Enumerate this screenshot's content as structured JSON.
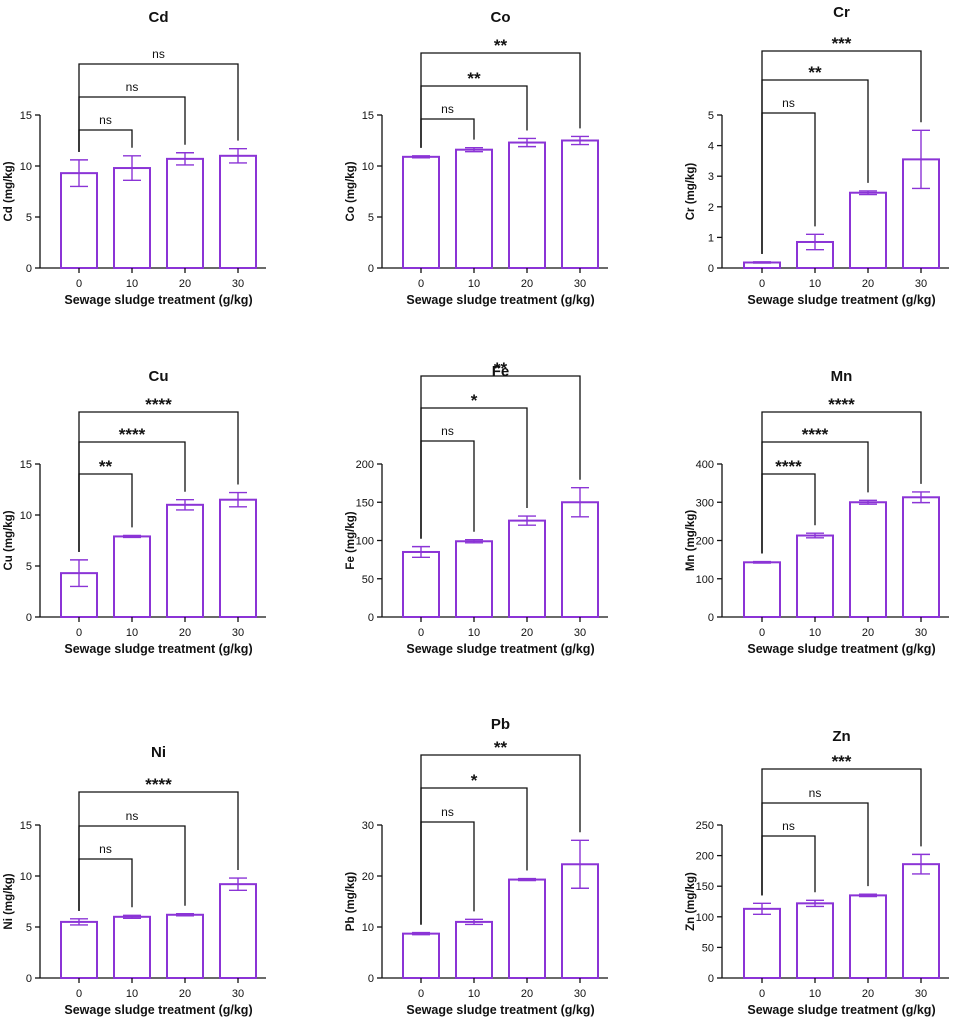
{
  "figure": {
    "accent_color": "#8b34d6",
    "axis_color": "#111111",
    "bracket_color": "#111111"
  },
  "chart_data": [
    {
      "type": "bar",
      "title": "Cd",
      "xlabel": "Sewage sludge treatment (g/kg)",
      "ylabel": "Cd (mg/kg)",
      "categories": [
        "0",
        "10",
        "20",
        "30"
      ],
      "values": [
        9.3,
        9.8,
        10.7,
        11.0
      ],
      "errors": [
        1.3,
        1.2,
        0.6,
        0.7
      ],
      "ylim": [
        0,
        15
      ],
      "yticks": [
        "0",
        "5",
        "10",
        "15"
      ],
      "significance": [
        {
          "from": "0",
          "to": "10",
          "label": "ns"
        },
        {
          "from": "0",
          "to": "20",
          "label": "ns"
        },
        {
          "from": "0",
          "to": "30",
          "label": "ns"
        }
      ]
    },
    {
      "type": "bar",
      "title": "Co",
      "xlabel": "Sewage sludge treatment (g/kg)",
      "ylabel": "Co (mg/kg)",
      "categories": [
        "0",
        "10",
        "20",
        "30"
      ],
      "values": [
        10.9,
        11.6,
        12.3,
        12.5
      ],
      "errors": [
        0.1,
        0.2,
        0.4,
        0.4
      ],
      "ylim": [
        0,
        15
      ],
      "yticks": [
        "0",
        "5",
        "10",
        "15"
      ],
      "significance": [
        {
          "from": "0",
          "to": "10",
          "label": "ns"
        },
        {
          "from": "0",
          "to": "20",
          "label": "**"
        },
        {
          "from": "0",
          "to": "30",
          "label": "**"
        }
      ]
    },
    {
      "type": "bar",
      "title": "Cr",
      "xlabel": "Sewage sludge treatment (g/kg)",
      "ylabel": "Cr (mg/kg)",
      "categories": [
        "0",
        "10",
        "20",
        "30"
      ],
      "values": [
        0.18,
        0.85,
        2.46,
        3.55
      ],
      "errors": [
        0.02,
        0.25,
        0.06,
        0.95
      ],
      "ylim": [
        0,
        5
      ],
      "yticks": [
        "0",
        "1",
        "2",
        "3",
        "4",
        "5"
      ],
      "significance": [
        {
          "from": "0",
          "to": "10",
          "label": "ns"
        },
        {
          "from": "0",
          "to": "20",
          "label": "**"
        },
        {
          "from": "0",
          "to": "30",
          "label": "***"
        }
      ]
    },
    {
      "type": "bar",
      "title": "Cu",
      "xlabel": "Sewage sludge treatment (g/kg)",
      "ylabel": "Cu (mg/kg)",
      "categories": [
        "0",
        "10",
        "20",
        "30"
      ],
      "values": [
        4.3,
        7.9,
        11.0,
        11.5
      ],
      "errors": [
        1.3,
        0.1,
        0.5,
        0.7
      ],
      "ylim": [
        0,
        15
      ],
      "yticks": [
        "0",
        "5",
        "10",
        "15"
      ],
      "significance": [
        {
          "from": "0",
          "to": "10",
          "label": "**"
        },
        {
          "from": "0",
          "to": "20",
          "label": "****"
        },
        {
          "from": "0",
          "to": "30",
          "label": "****"
        }
      ]
    },
    {
      "type": "bar",
      "title": "Fe",
      "xlabel": "Sewage sludge treatment (g/kg)",
      "ylabel": "Fe (mg/kg)",
      "categories": [
        "0",
        "10",
        "20",
        "30"
      ],
      "values": [
        85,
        99,
        126,
        150
      ],
      "errors": [
        7,
        2,
        6,
        19
      ],
      "ylim": [
        0,
        200
      ],
      "yticks": [
        "0",
        "50",
        "100",
        "150",
        "200"
      ],
      "significance": [
        {
          "from": "0",
          "to": "10",
          "label": "ns"
        },
        {
          "from": "0",
          "to": "20",
          "label": "*"
        },
        {
          "from": "0",
          "to": "30",
          "label": "**"
        }
      ]
    },
    {
      "type": "bar",
      "title": "Mn",
      "xlabel": "Sewage sludge treatment (g/kg)",
      "ylabel": "Mn (mg/kg)",
      "categories": [
        "0",
        "10",
        "20",
        "30"
      ],
      "values": [
        143,
        213,
        300,
        313
      ],
      "errors": [
        2,
        6,
        5,
        14
      ],
      "ylim": [
        0,
        400
      ],
      "yticks": [
        "0",
        "100",
        "200",
        "300",
        "400"
      ],
      "significance": [
        {
          "from": "0",
          "to": "10",
          "label": "****"
        },
        {
          "from": "0",
          "to": "20",
          "label": "****"
        },
        {
          "from": "0",
          "to": "30",
          "label": "****"
        }
      ]
    },
    {
      "type": "bar",
      "title": "Ni",
      "xlabel": "Sewage sludge treatment (g/kg)",
      "ylabel": "Ni (mg/kg)",
      "categories": [
        "0",
        "10",
        "20",
        "30"
      ],
      "values": [
        5.5,
        6.0,
        6.2,
        9.2
      ],
      "errors": [
        0.3,
        0.15,
        0.1,
        0.6
      ],
      "ylim": [
        0,
        15
      ],
      "yticks": [
        "0",
        "5",
        "10",
        "15"
      ],
      "significance": [
        {
          "from": "0",
          "to": "10",
          "label": "ns"
        },
        {
          "from": "0",
          "to": "20",
          "label": "ns"
        },
        {
          "from": "0",
          "to": "30",
          "label": "****"
        }
      ]
    },
    {
      "type": "bar",
      "title": "Pb",
      "xlabel": "Sewage sludge treatment (g/kg)",
      "ylabel": "Pb (mg/kg)",
      "categories": [
        "0",
        "10",
        "20",
        "30"
      ],
      "values": [
        8.7,
        11.0,
        19.3,
        22.3
      ],
      "errors": [
        0.2,
        0.5,
        0.2,
        4.7
      ],
      "ylim": [
        0,
        30
      ],
      "yticks": [
        "0",
        "10",
        "20",
        "30"
      ],
      "significance": [
        {
          "from": "0",
          "to": "10",
          "label": "ns"
        },
        {
          "from": "0",
          "to": "20",
          "label": "*"
        },
        {
          "from": "0",
          "to": "30",
          "label": "**"
        }
      ]
    },
    {
      "type": "bar",
      "title": "Zn",
      "xlabel": "Sewage sludge treatment (g/kg)",
      "ylabel": "Zn (mg/kg)",
      "categories": [
        "0",
        "10",
        "20",
        "30"
      ],
      "values": [
        113,
        122,
        135,
        186
      ],
      "errors": [
        9,
        5,
        2,
        16
      ],
      "ylim": [
        0,
        250
      ],
      "yticks": [
        "0",
        "50",
        "100",
        "150",
        "200",
        "250"
      ],
      "significance": [
        {
          "from": "0",
          "to": "10",
          "label": "ns"
        },
        {
          "from": "0",
          "to": "20",
          "label": "ns"
        },
        {
          "from": "0",
          "to": "30",
          "label": "***"
        }
      ]
    }
  ]
}
